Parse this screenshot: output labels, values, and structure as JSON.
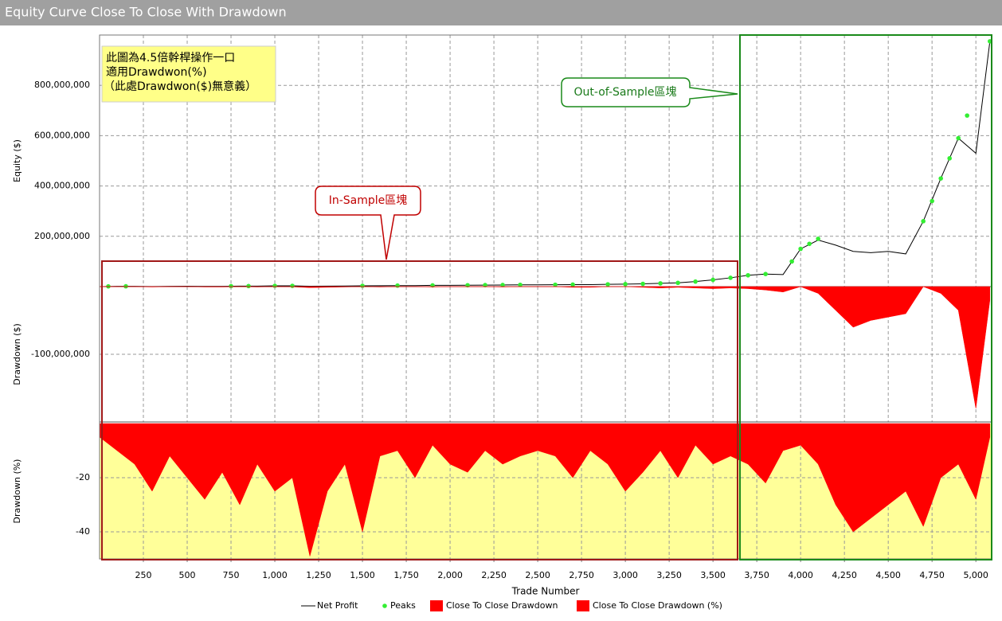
{
  "chart_data": [
    {
      "type": "line",
      "title": "Equity Curve Close To Close With Drawdown",
      "y_label": "Equity ($)",
      "ylim": [
        0,
        1000000000.0
      ],
      "yticks": [
        {
          "value": 200000000.0,
          "label": "200,000,000"
        },
        {
          "value": 400000000.0,
          "label": "400,000,000"
        },
        {
          "value": 600000000.0,
          "label": "600,000,000"
        },
        {
          "value": 800000000.0,
          "label": "800,000,000"
        }
      ],
      "grid": true,
      "annotations": [
        "此圖為4.5倍幹桿操作一口",
        "適用Drawdwon(%)",
        "（此處Drawdwon($)無意義）",
        "In-Sample區塊",
        "Out-of-Sample區塊"
      ],
      "series": [
        {
          "name": "Net Profit",
          "type": "line",
          "color": "#000000",
          "x": [
            0,
            100,
            200,
            300,
            400,
            500,
            600,
            700,
            800,
            900,
            1000,
            1100,
            1200,
            1300,
            1400,
            1500,
            1600,
            1700,
            1800,
            1900,
            2000,
            2100,
            2200,
            2300,
            2400,
            2500,
            2600,
            2700,
            2800,
            2900,
            3000,
            3100,
            3200,
            3300,
            3400,
            3500,
            3600,
            3700,
            3800,
            3900,
            4000,
            4100,
            4200,
            4300,
            4400,
            4500,
            4600,
            4700,
            4800,
            4900,
            5000,
            5080
          ],
          "values": [
            0,
            1000000.0,
            1000000.0,
            500000.0,
            1000000.0,
            1500000.0,
            1000000.0,
            1000000.0,
            2000000.0,
            2000000.0,
            3000000.0,
            3000000.0,
            1500000.0,
            2000000.0,
            2500000.0,
            3000000.0,
            3500000.0,
            4000000.0,
            4000000.0,
            5000000.0,
            5000000.0,
            5500000.0,
            6000000.0,
            6500000.0,
            7000000.0,
            7000000.0,
            7500000.0,
            8000000.0,
            8000000.0,
            9000000.0,
            10000000.0,
            11000000.0,
            13000000.0,
            15000000.0,
            20000000.0,
            27000000.0,
            35000000.0,
            45000000.0,
            50000000.0,
            48000000.0,
            150000000.0,
            185000000.0,
            165000000.0,
            140000000.0,
            135000000.0,
            140000000.0,
            130000000.0,
            260000000.0,
            430000000.0,
            590000000.0,
            530000000.0,
            975000000.0
          ]
        },
        {
          "name": "Peaks",
          "type": "scatter",
          "color": "#33ee33",
          "x": [
            50,
            150,
            750,
            850,
            1000,
            1100,
            1500,
            1700,
            1900,
            2100,
            2200,
            2300,
            2400,
            2600,
            2700,
            2900,
            3000,
            3100,
            3200,
            3300,
            3400,
            3500,
            3600,
            3700,
            3800,
            3950,
            4000,
            4050,
            4100,
            4700,
            4750,
            4800,
            4850,
            4900,
            4950,
            5080
          ],
          "values": [
            1000000.0,
            1300000.0,
            2000000.0,
            2200000.0,
            3000000.0,
            3100000.0,
            3200000.0,
            4000000.0,
            5000000.0,
            5500000.0,
            6000000.0,
            6500000.0,
            7000000.0,
            7500000.0,
            8000000.0,
            9000000.0,
            10000000.0,
            11000000.0,
            13000000.0,
            15000000.0,
            20000000.0,
            27000000.0,
            35000000.0,
            45000000.0,
            50000000.0,
            100000000.0,
            150000000.0,
            170000000.0,
            190000000.0,
            260000000.0,
            340000000.0,
            430000000.0,
            510000000.0,
            590000000.0,
            680000000.0,
            975000000.0
          ]
        }
      ]
    },
    {
      "type": "area",
      "y_label": "Drawdown ($)",
      "ylim": [
        -200000000.0,
        0
      ],
      "yticks": [
        {
          "value": -100000000.0,
          "label": "-100,000,000"
        }
      ],
      "grid": true,
      "series": [
        {
          "name": "Close To Close Drawdown",
          "color": "#ff0000",
          "x": [
            0,
            100,
            200,
            300,
            400,
            500,
            600,
            700,
            800,
            900,
            1000,
            1100,
            1200,
            1300,
            1400,
            1500,
            1600,
            1700,
            1800,
            1900,
            2000,
            2100,
            2200,
            2300,
            2400,
            2500,
            2600,
            2700,
            2800,
            2900,
            3000,
            3100,
            3200,
            3300,
            3400,
            3500,
            3600,
            3700,
            3800,
            3900,
            4000,
            4100,
            4200,
            4300,
            4400,
            4500,
            4600,
            4700,
            4800,
            4900,
            5000,
            5080
          ],
          "values": [
            0,
            0,
            0,
            -500000.0,
            0,
            0,
            -500000.0,
            -500000.0,
            0,
            -500000.0,
            0,
            -300000.0,
            -1500000.0,
            -1000000.0,
            -500000.0,
            0,
            -500000.0,
            0,
            0,
            -500000.0,
            0,
            0,
            0,
            -500000.0,
            0,
            0,
            0,
            -1000000.0,
            -1000000.0,
            0,
            0,
            -1000000.0,
            -2000000.0,
            -1000000.0,
            -2000000.0,
            -3000000.0,
            -2000000.0,
            -3000000.0,
            -5000000.0,
            -8000000.0,
            0,
            -10000000.0,
            -35000000.0,
            -60000000.0,
            -50000000.0,
            -45000000.0,
            -40000000.0,
            0,
            -10000000.0,
            -35000000.0,
            -180000000.0,
            -20000000.0
          ]
        }
      ]
    },
    {
      "type": "area",
      "y_label": "Drawdown (%)",
      "ylim": [
        -50,
        0
      ],
      "yticks": [
        -20,
        -40
      ],
      "grid": true,
      "plot_background": "#ffff99",
      "x_label": "Trade Number",
      "xlim": [
        0,
        5090
      ],
      "xticks": [
        250,
        500,
        750,
        {
          "value": 1000,
          "label": "1,000"
        },
        {
          "value": 1250,
          "label": "1,250"
        },
        {
          "value": 1500,
          "label": "1,500"
        },
        {
          "value": 1750,
          "label": "1,750"
        },
        {
          "value": 2000,
          "label": "2,000"
        },
        {
          "value": 2250,
          "label": "2,250"
        },
        {
          "value": 2500,
          "label": "2,500"
        },
        {
          "value": 2750,
          "label": "2,750"
        },
        {
          "value": 3000,
          "label": "3,000"
        },
        {
          "value": 3250,
          "label": "3,250"
        },
        {
          "value": 3500,
          "label": "3,500"
        },
        {
          "value": 3750,
          "label": "3,750"
        },
        {
          "value": 4000,
          "label": "4,000"
        },
        {
          "value": 4250,
          "label": "4,250"
        },
        {
          "value": 4500,
          "label": "4,500"
        },
        {
          "value": 4750,
          "label": "4,750"
        },
        {
          "value": 5000,
          "label": "5,000"
        }
      ],
      "legend": "bottom",
      "series": [
        {
          "name": "Close To Close Drawdown (%)",
          "color": "#ff0000",
          "x": [
            0,
            100,
            200,
            300,
            400,
            500,
            600,
            700,
            800,
            900,
            1000,
            1100,
            1200,
            1300,
            1400,
            1500,
            1600,
            1700,
            1800,
            1900,
            2000,
            2100,
            2200,
            2300,
            2400,
            2500,
            2600,
            2700,
            2800,
            2900,
            3000,
            3100,
            3200,
            3300,
            3400,
            3500,
            3600,
            3700,
            3800,
            3900,
            4000,
            4100,
            4200,
            4300,
            4400,
            4500,
            4600,
            4700,
            4800,
            4900,
            5000,
            5080
          ],
          "values": [
            -5,
            -10,
            -15,
            -25,
            -12,
            -20,
            -28,
            -18,
            -30,
            -15,
            -25,
            -20,
            -49,
            -25,
            -15,
            -40,
            -12,
            -10,
            -20,
            -8,
            -15,
            -18,
            -10,
            -15,
            -12,
            -10,
            -12,
            -20,
            -10,
            -15,
            -25,
            -18,
            -10,
            -20,
            -8,
            -15,
            -12,
            -15,
            -22,
            -10,
            -8,
            -15,
            -30,
            -40,
            -35,
            -30,
            -25,
            -38,
            -20,
            -15,
            -28,
            -5
          ]
        }
      ]
    }
  ]
}
